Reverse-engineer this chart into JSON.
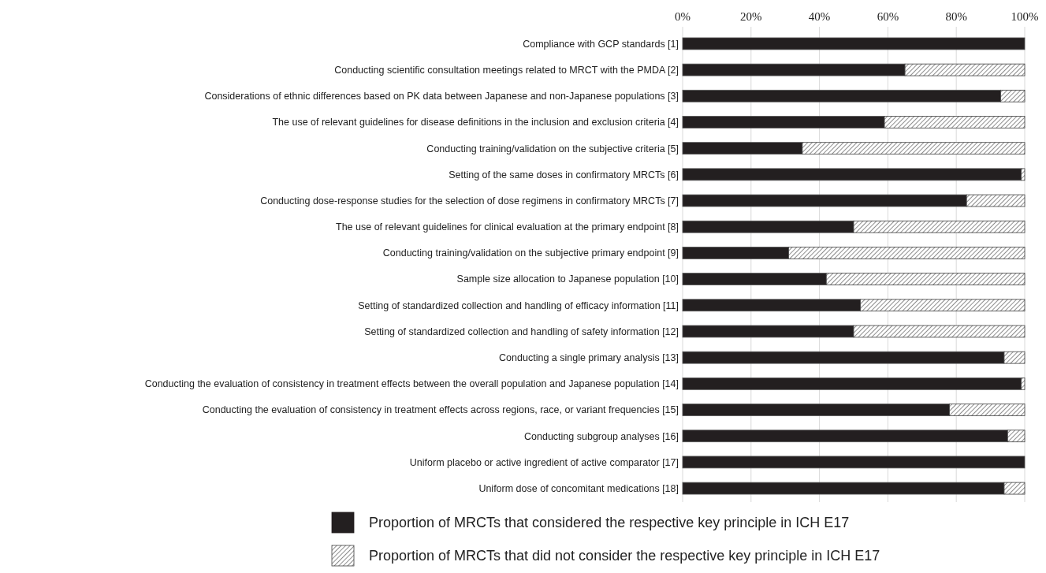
{
  "chart_data": {
    "type": "bar",
    "orientation": "horizontal",
    "stacked": true,
    "categories": [
      "Compliance with GCP standards [1]",
      "Conducting scientific consultation meetings related to MRCT with the PMDA [2]",
      "Considerations of ethnic differences based on PK data between Japanese and non-Japanese populations [3]",
      "The use of relevant guidelines for disease definitions in the inclusion and exclusion criteria [4]",
      "Conducting training/validation on the subjective criteria [5]",
      "Setting of the same doses in confirmatory MRCTs [6]",
      "Conducting dose-response studies for the selection of dose regimens in confirmatory MRCTs [7]",
      "The use of relevant guidelines for clinical evaluation at the primary endpoint [8]",
      "Conducting training/validation on the subjective primary endpoint [9]",
      "Sample size allocation to Japanese population [10]",
      "Setting of standardized collection and handling of efficacy information [11]",
      "Setting of standardized collection and handling of safety information [12]",
      "Conducting a single primary analysis [13]",
      "Conducting the evaluation of consistency in treatment effects between the overall population and Japanese population [14]",
      "Conducting the evaluation of consistency in treatment effects across regions, race, or variant frequencies [15]",
      "Conducting subgroup analyses [16]",
      "Uniform placebo or active ingredient of active comparator [17]",
      "Uniform dose of concomitant medications [18]"
    ],
    "series": [
      {
        "name": "Proportion of MRCTs that considered the respective key principle in ICH E17",
        "color": "#231f20",
        "values": [
          100,
          65,
          93,
          59,
          35,
          99,
          83,
          50,
          31,
          42,
          52,
          50,
          94,
          99,
          78,
          95,
          100,
          94
        ]
      },
      {
        "name": "Proportion of MRCTs that did not consider the respective key principle in ICH E17",
        "color": "#404040",
        "values": [
          0,
          35,
          7,
          41,
          65,
          1,
          17,
          50,
          69,
          58,
          48,
          50,
          6,
          1,
          22,
          5,
          0,
          6
        ]
      }
    ],
    "xlim": [
      0,
      100
    ],
    "xticks": [
      {
        "value": 0,
        "label": "0%"
      },
      {
        "value": 20,
        "label": "20%"
      },
      {
        "value": 40,
        "label": "40%"
      },
      {
        "value": 60,
        "label": "60%"
      },
      {
        "value": 80,
        "label": "80%"
      },
      {
        "value": 100,
        "label": "100%"
      }
    ],
    "grid": "x",
    "legend": "bottom"
  }
}
